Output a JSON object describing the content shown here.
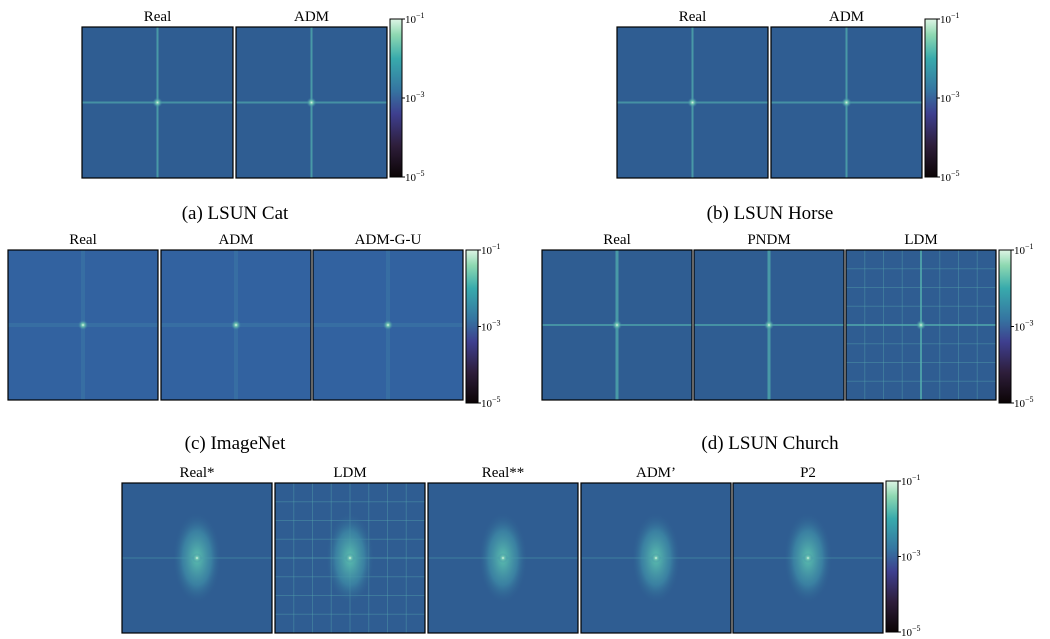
{
  "figures": [
    {
      "caption": "(a) LSUN Cat",
      "images": [
        "Real",
        "ADM"
      ],
      "colorbar": {
        "ticks": [
          {
            "value": 0.1,
            "base": "10",
            "exponent": "−1"
          },
          {
            "value": 0.001,
            "base": "10",
            "exponent": "−3"
          },
          {
            "value": 1e-05,
            "base": "10",
            "exponent": "−5"
          }
        ]
      }
    },
    {
      "caption": "(b) LSUN Horse",
      "images": [
        "Real",
        "ADM"
      ],
      "colorbar": {
        "ticks": [
          {
            "value": 0.1,
            "base": "10",
            "exponent": "−1"
          },
          {
            "value": 0.001,
            "base": "10",
            "exponent": "−3"
          },
          {
            "value": 1e-05,
            "base": "10",
            "exponent": "−5"
          }
        ]
      }
    },
    {
      "caption": "(c) ImageNet",
      "images": [
        "Real",
        "ADM",
        "ADM-G-U"
      ],
      "colorbar": {
        "ticks": [
          {
            "value": 0.1,
            "base": "10",
            "exponent": "−1"
          },
          {
            "value": 0.001,
            "base": "10",
            "exponent": "−3"
          },
          {
            "value": 1e-05,
            "base": "10",
            "exponent": "−5"
          }
        ]
      }
    },
    {
      "caption": "(d) LSUN Church",
      "images": [
        "Real",
        "PNDM",
        "LDM"
      ],
      "colorbar": {
        "ticks": [
          {
            "value": 0.1,
            "base": "10",
            "exponent": "−1"
          },
          {
            "value": 0.001,
            "base": "10",
            "exponent": "−3"
          },
          {
            "value": 1e-05,
            "base": "10",
            "exponent": "−5"
          }
        ]
      }
    },
    {
      "images": [
        "Real*",
        "LDM",
        "Real**",
        "ADM’",
        "P2"
      ],
      "colorbar": {
        "ticks": [
          {
            "value": 0.1,
            "base": "10",
            "exponent": "−1"
          },
          {
            "value": 0.001,
            "base": "10",
            "exponent": "−3"
          },
          {
            "value": 1e-05,
            "base": "10",
            "exponent": "−5"
          }
        ]
      }
    }
  ]
}
